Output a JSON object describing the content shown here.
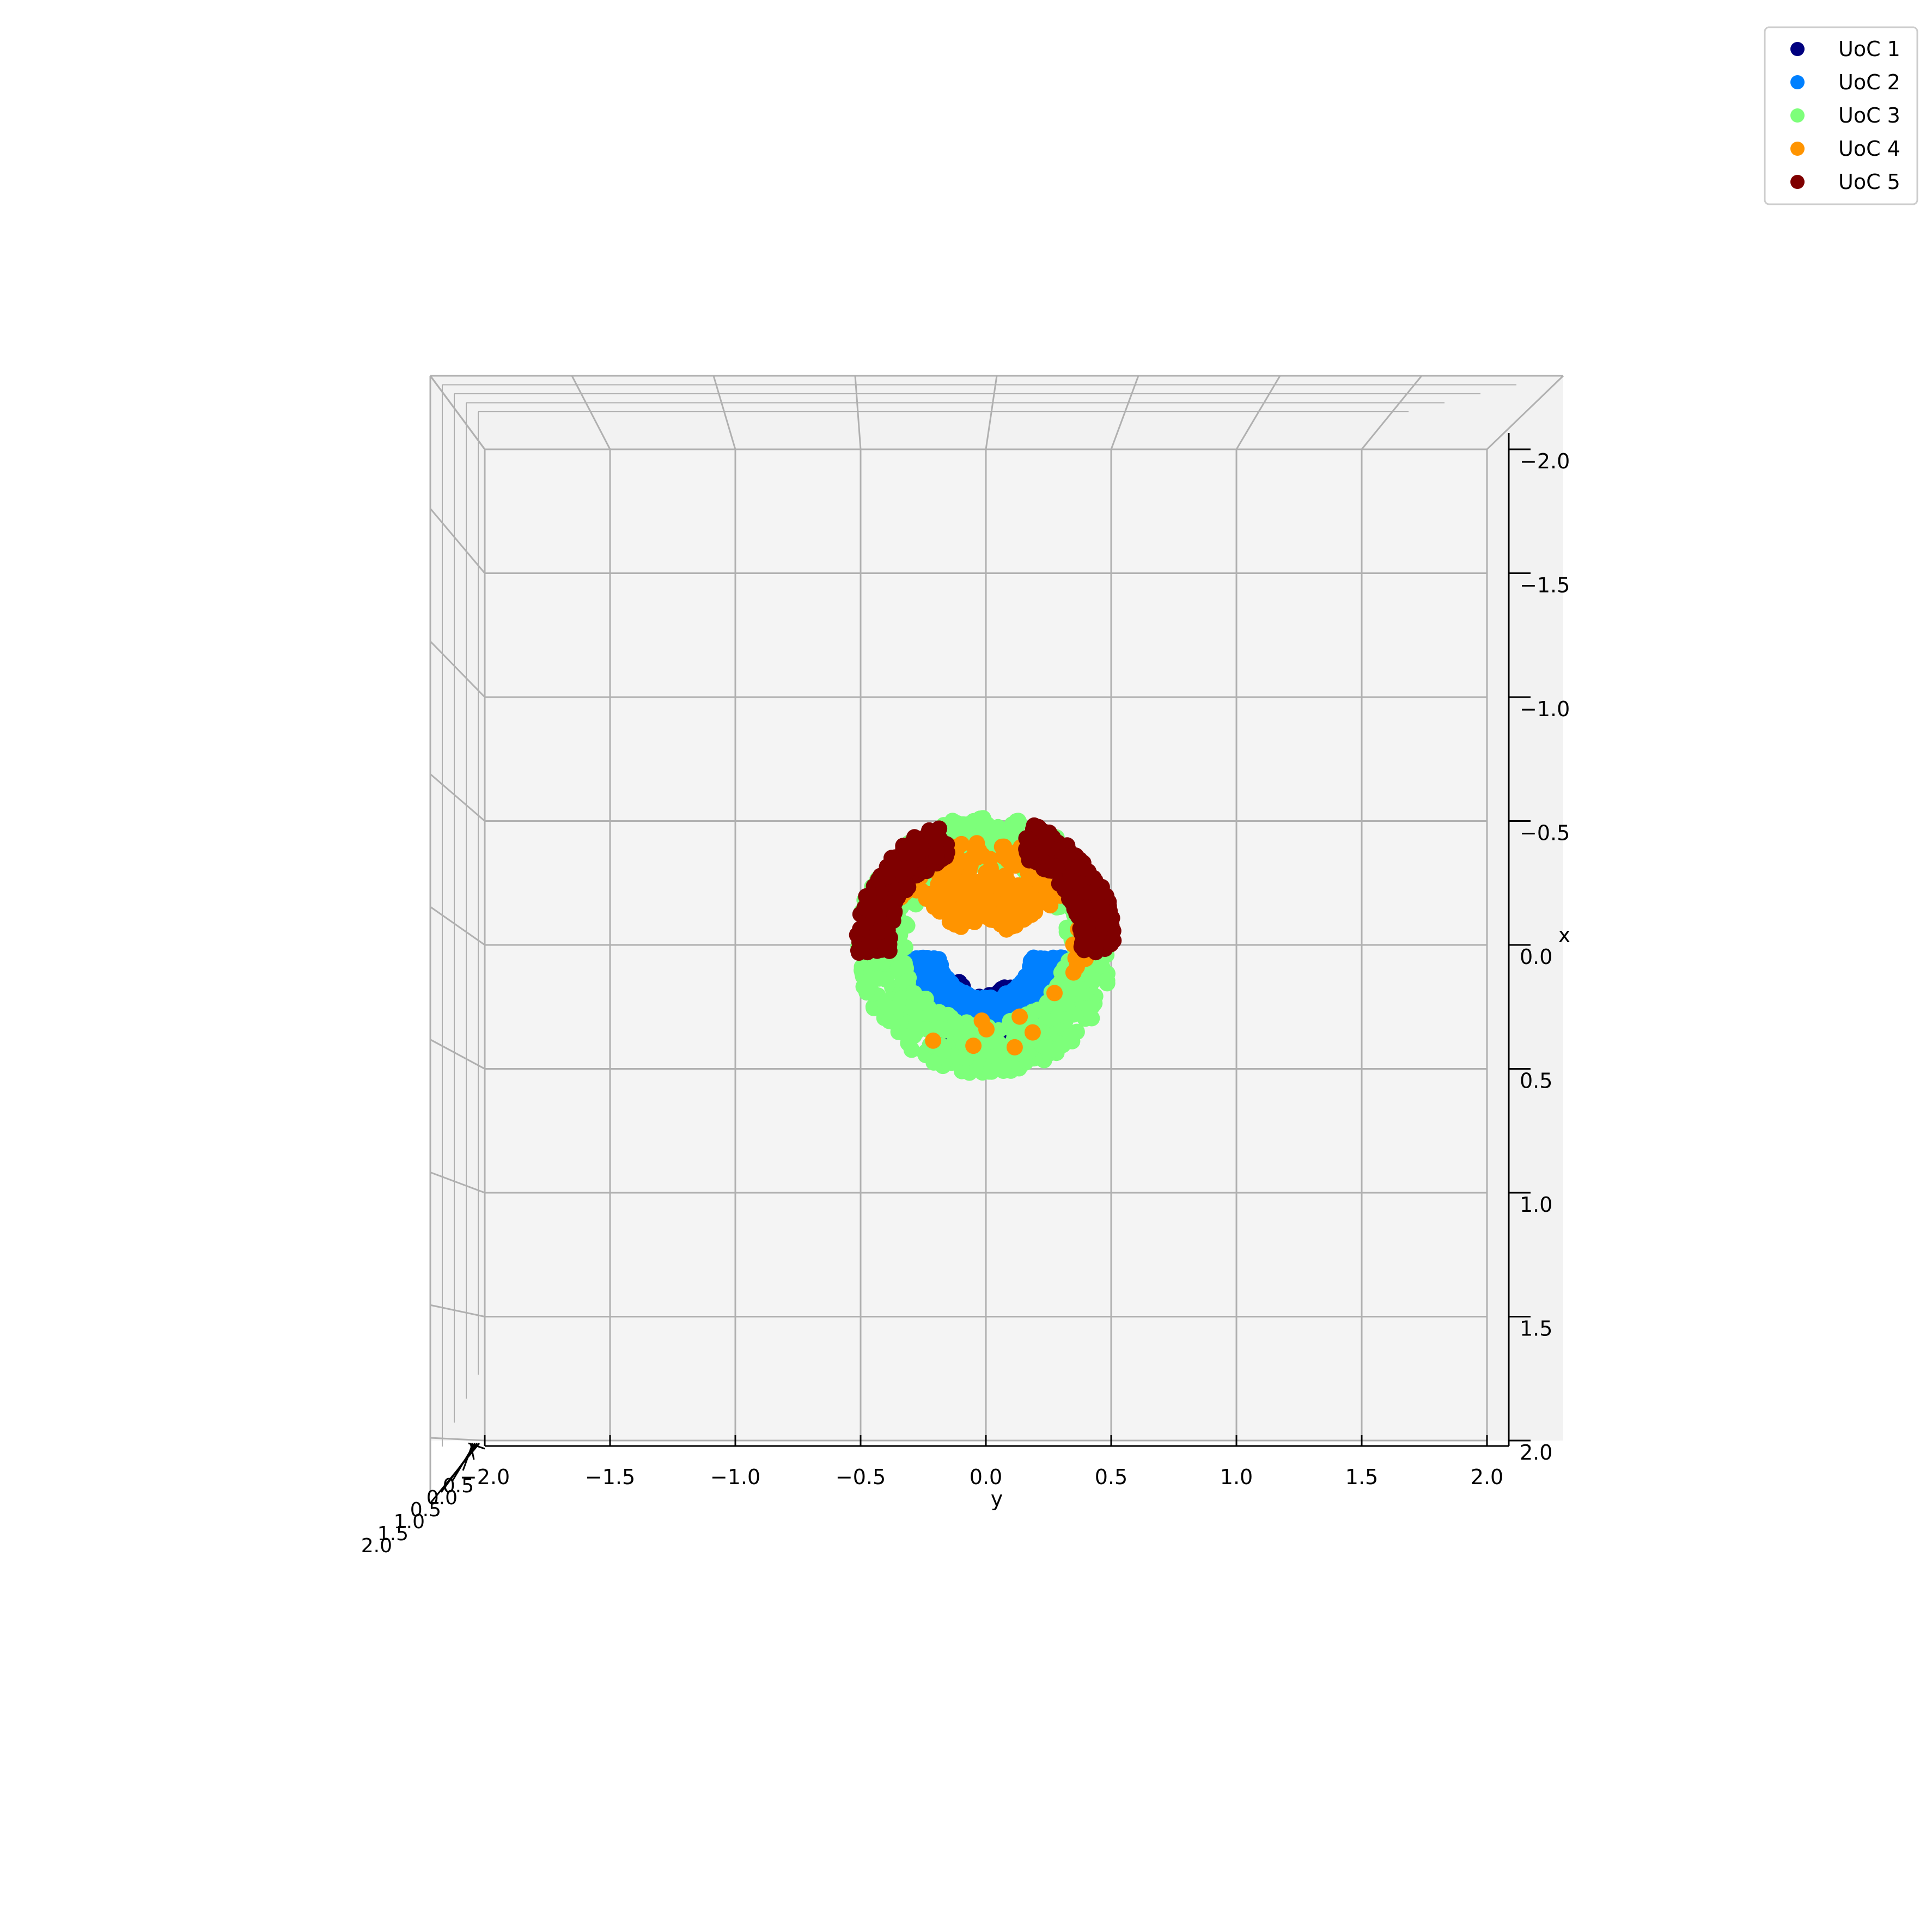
{
  "chart_data": {
    "type": "scatter",
    "projection": "3d",
    "xlabel": "y",
    "ylabel": "x",
    "zlabel": "",
    "xlim": [
      -2.0,
      2.0
    ],
    "ylim": [
      -2.0,
      2.0
    ],
    "zlim": [
      -2.0,
      2.0
    ],
    "x_ticks": [
      "−2.0",
      "−1.5",
      "−1.0",
      "−0.5",
      "0.0",
      "0.5",
      "1.0",
      "1.5",
      "2.0"
    ],
    "y_ticks": [
      "−2.0",
      "−1.5",
      "−1.0",
      "−0.5",
      "0.0",
      "0.5",
      "1.0",
      "1.5",
      "2.0"
    ],
    "depth_ticks": [
      "0.5",
      "0.0",
      "0.5",
      "1.0",
      "1.5",
      "2.0"
    ],
    "grid": true,
    "legend_position": "top-right",
    "series": [
      {
        "name": "UoC 1",
        "color": "#00007f",
        "shell": [
          0.0,
          0.18
        ],
        "points": 140,
        "seed": 11
      },
      {
        "name": "UoC 2",
        "color": "#0080ff",
        "shell": [
          0.18,
          0.32
        ],
        "points": 520,
        "seed": 23
      },
      {
        "name": "UoC 3",
        "color": "#7dff7a",
        "shell": [
          0.32,
          0.52
        ],
        "points": 700,
        "seed": 37
      },
      {
        "name": "UoC 4",
        "color": "#ff9400",
        "shell": [
          0.1,
          0.42
        ],
        "points": 260,
        "seed": 41
      },
      {
        "name": "UoC 5",
        "color": "#7f0000",
        "shell": [
          0.38,
          0.52
        ],
        "points": 520,
        "seed": 53
      }
    ]
  }
}
